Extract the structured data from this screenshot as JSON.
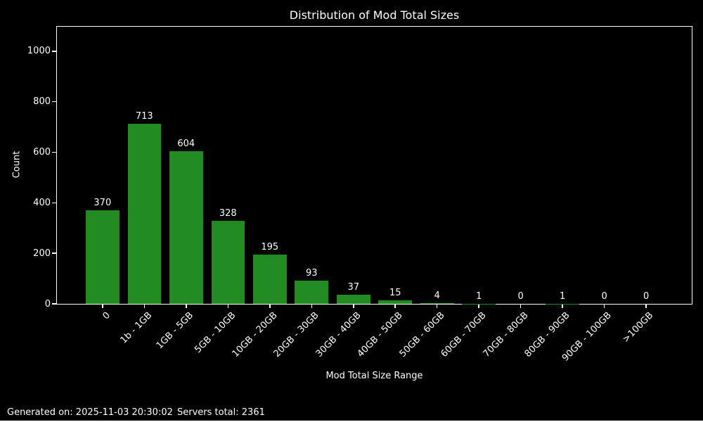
{
  "title": "Distribution of Mod Total Sizes",
  "footer": {
    "generated": "Generated on: 2025-11-03 20:30:02",
    "servers_total": "Servers total: 2361"
  },
  "colors": {
    "background": "#000000",
    "bar": "#228B22",
    "text": "#ffffff",
    "axis": "#ffffff"
  },
  "chart_data": {
    "type": "bar",
    "title": "Distribution of Mod Total Sizes",
    "xlabel": "Mod Total Size Range",
    "ylabel": "Count",
    "categories": [
      "0",
      "1b - 1GB",
      "1GB - 5GB",
      "5GB - 10GB",
      "10GB - 20GB",
      "20GB - 30GB",
      "30GB - 40GB",
      "40GB - 50GB",
      "50GB - 60GB",
      "60GB - 70GB",
      "70GB - 80GB",
      "80GB - 90GB",
      "90GB - 100GB",
      ">100GB"
    ],
    "values": [
      370,
      713,
      604,
      328,
      195,
      93,
      37,
      15,
      4,
      1,
      0,
      1,
      0,
      0
    ],
    "ylim": [
      0,
      1097
    ],
    "yticks": [
      0,
      200,
      400,
      600,
      800,
      1000
    ],
    "xtick_rotation": 45,
    "grid": false,
    "legend": null,
    "bar_color": "#228B22"
  }
}
